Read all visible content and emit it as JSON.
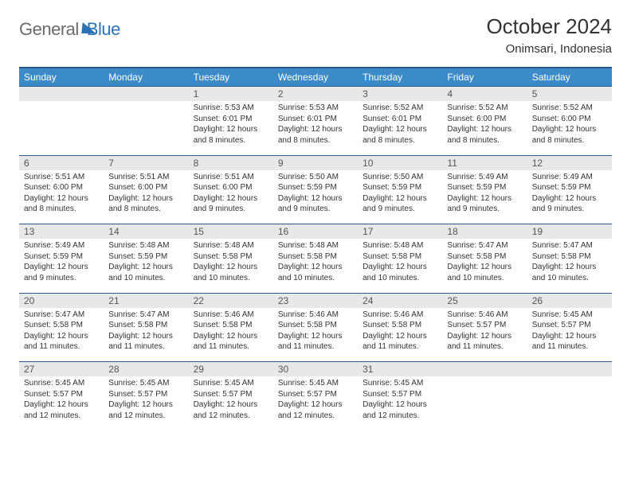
{
  "brand": {
    "part1": "General",
    "part2": "Blue"
  },
  "title": "October 2024",
  "location": "Onimsari, Indonesia",
  "colors": {
    "header_bg": "#3b8bc8",
    "header_border": "#2a5b84",
    "daynum_bg": "#e8e8e8",
    "text": "#333333",
    "brand_gray": "#6b6b6b",
    "brand_blue": "#2a72b5"
  },
  "weekdays": [
    "Sunday",
    "Monday",
    "Tuesday",
    "Wednesday",
    "Thursday",
    "Friday",
    "Saturday"
  ],
  "weeks": [
    {
      "nums": [
        "",
        "",
        "1",
        "2",
        "3",
        "4",
        "5"
      ],
      "cells": [
        null,
        null,
        {
          "sunrise": "Sunrise: 5:53 AM",
          "sunset": "Sunset: 6:01 PM",
          "daylight": "Daylight: 12 hours and 8 minutes."
        },
        {
          "sunrise": "Sunrise: 5:53 AM",
          "sunset": "Sunset: 6:01 PM",
          "daylight": "Daylight: 12 hours and 8 minutes."
        },
        {
          "sunrise": "Sunrise: 5:52 AM",
          "sunset": "Sunset: 6:01 PM",
          "daylight": "Daylight: 12 hours and 8 minutes."
        },
        {
          "sunrise": "Sunrise: 5:52 AM",
          "sunset": "Sunset: 6:00 PM",
          "daylight": "Daylight: 12 hours and 8 minutes."
        },
        {
          "sunrise": "Sunrise: 5:52 AM",
          "sunset": "Sunset: 6:00 PM",
          "daylight": "Daylight: 12 hours and 8 minutes."
        }
      ]
    },
    {
      "nums": [
        "6",
        "7",
        "8",
        "9",
        "10",
        "11",
        "12"
      ],
      "cells": [
        {
          "sunrise": "Sunrise: 5:51 AM",
          "sunset": "Sunset: 6:00 PM",
          "daylight": "Daylight: 12 hours and 8 minutes."
        },
        {
          "sunrise": "Sunrise: 5:51 AM",
          "sunset": "Sunset: 6:00 PM",
          "daylight": "Daylight: 12 hours and 8 minutes."
        },
        {
          "sunrise": "Sunrise: 5:51 AM",
          "sunset": "Sunset: 6:00 PM",
          "daylight": "Daylight: 12 hours and 9 minutes."
        },
        {
          "sunrise": "Sunrise: 5:50 AM",
          "sunset": "Sunset: 5:59 PM",
          "daylight": "Daylight: 12 hours and 9 minutes."
        },
        {
          "sunrise": "Sunrise: 5:50 AM",
          "sunset": "Sunset: 5:59 PM",
          "daylight": "Daylight: 12 hours and 9 minutes."
        },
        {
          "sunrise": "Sunrise: 5:49 AM",
          "sunset": "Sunset: 5:59 PM",
          "daylight": "Daylight: 12 hours and 9 minutes."
        },
        {
          "sunrise": "Sunrise: 5:49 AM",
          "sunset": "Sunset: 5:59 PM",
          "daylight": "Daylight: 12 hours and 9 minutes."
        }
      ]
    },
    {
      "nums": [
        "13",
        "14",
        "15",
        "16",
        "17",
        "18",
        "19"
      ],
      "cells": [
        {
          "sunrise": "Sunrise: 5:49 AM",
          "sunset": "Sunset: 5:59 PM",
          "daylight": "Daylight: 12 hours and 9 minutes."
        },
        {
          "sunrise": "Sunrise: 5:48 AM",
          "sunset": "Sunset: 5:59 PM",
          "daylight": "Daylight: 12 hours and 10 minutes."
        },
        {
          "sunrise": "Sunrise: 5:48 AM",
          "sunset": "Sunset: 5:58 PM",
          "daylight": "Daylight: 12 hours and 10 minutes."
        },
        {
          "sunrise": "Sunrise: 5:48 AM",
          "sunset": "Sunset: 5:58 PM",
          "daylight": "Daylight: 12 hours and 10 minutes."
        },
        {
          "sunrise": "Sunrise: 5:48 AM",
          "sunset": "Sunset: 5:58 PM",
          "daylight": "Daylight: 12 hours and 10 minutes."
        },
        {
          "sunrise": "Sunrise: 5:47 AM",
          "sunset": "Sunset: 5:58 PM",
          "daylight": "Daylight: 12 hours and 10 minutes."
        },
        {
          "sunrise": "Sunrise: 5:47 AM",
          "sunset": "Sunset: 5:58 PM",
          "daylight": "Daylight: 12 hours and 10 minutes."
        }
      ]
    },
    {
      "nums": [
        "20",
        "21",
        "22",
        "23",
        "24",
        "25",
        "26"
      ],
      "cells": [
        {
          "sunrise": "Sunrise: 5:47 AM",
          "sunset": "Sunset: 5:58 PM",
          "daylight": "Daylight: 12 hours and 11 minutes."
        },
        {
          "sunrise": "Sunrise: 5:47 AM",
          "sunset": "Sunset: 5:58 PM",
          "daylight": "Daylight: 12 hours and 11 minutes."
        },
        {
          "sunrise": "Sunrise: 5:46 AM",
          "sunset": "Sunset: 5:58 PM",
          "daylight": "Daylight: 12 hours and 11 minutes."
        },
        {
          "sunrise": "Sunrise: 5:46 AM",
          "sunset": "Sunset: 5:58 PM",
          "daylight": "Daylight: 12 hours and 11 minutes."
        },
        {
          "sunrise": "Sunrise: 5:46 AM",
          "sunset": "Sunset: 5:58 PM",
          "daylight": "Daylight: 12 hours and 11 minutes."
        },
        {
          "sunrise": "Sunrise: 5:46 AM",
          "sunset": "Sunset: 5:57 PM",
          "daylight": "Daylight: 12 hours and 11 minutes."
        },
        {
          "sunrise": "Sunrise: 5:45 AM",
          "sunset": "Sunset: 5:57 PM",
          "daylight": "Daylight: 12 hours and 11 minutes."
        }
      ]
    },
    {
      "nums": [
        "27",
        "28",
        "29",
        "30",
        "31",
        "",
        ""
      ],
      "cells": [
        {
          "sunrise": "Sunrise: 5:45 AM",
          "sunset": "Sunset: 5:57 PM",
          "daylight": "Daylight: 12 hours and 12 minutes."
        },
        {
          "sunrise": "Sunrise: 5:45 AM",
          "sunset": "Sunset: 5:57 PM",
          "daylight": "Daylight: 12 hours and 12 minutes."
        },
        {
          "sunrise": "Sunrise: 5:45 AM",
          "sunset": "Sunset: 5:57 PM",
          "daylight": "Daylight: 12 hours and 12 minutes."
        },
        {
          "sunrise": "Sunrise: 5:45 AM",
          "sunset": "Sunset: 5:57 PM",
          "daylight": "Daylight: 12 hours and 12 minutes."
        },
        {
          "sunrise": "Sunrise: 5:45 AM",
          "sunset": "Sunset: 5:57 PM",
          "daylight": "Daylight: 12 hours and 12 minutes."
        },
        null,
        null
      ]
    }
  ]
}
